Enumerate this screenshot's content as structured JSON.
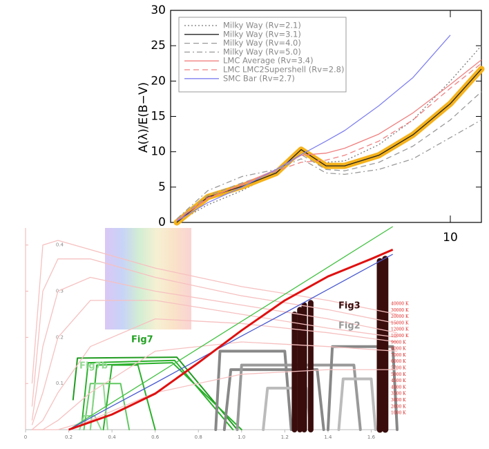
{
  "chart_data": [
    {
      "type": "line",
      "ylabel": "A(λ)/E(B−V)",
      "x": [
        1.2,
        2.2,
        3.3,
        4.4,
        5.2,
        6.0,
        6.6,
        7.7,
        8.8,
        10.0,
        11.0
      ],
      "xlim": [
        1,
        11
      ],
      "xticks": [
        10
      ],
      "ylim": [
        0,
        30
      ],
      "yticks": [
        0,
        5,
        10,
        15,
        20,
        25,
        30
      ],
      "legend": "upper left",
      "series": [
        {
          "name": "Milky Way (Rv=2.1)",
          "color": "#777777",
          "dash": "dotted",
          "values": [
            0,
            2.5,
            4.5,
            7,
            10,
            8.5,
            8.7,
            11,
            14.5,
            20,
            25
          ]
        },
        {
          "name": "Milky Way (Rv=3.1)",
          "color": "#222222",
          "dash": "solid",
          "band_color": "#f5b21b",
          "values": [
            0,
            3.6,
            5.1,
            7,
            10.3,
            8,
            8,
            9.5,
            12.4,
            16.8,
            21.7
          ]
        },
        {
          "name": "Milky Way (Rv=4.0)",
          "color": "#999999",
          "dash": "dashed",
          "values": [
            0.3,
            3.8,
            5.6,
            7.2,
            9.6,
            7.5,
            7.3,
            8.5,
            10.8,
            14.5,
            18.5
          ]
        },
        {
          "name": "Milky Way (Rv=5.0)",
          "color": "#999999",
          "dash": "dashdot",
          "values": [
            0.5,
            4.5,
            6.5,
            7.5,
            9,
            7,
            6.8,
            7.5,
            9,
            12,
            14.5
          ]
        },
        {
          "name": "LMC Average (Rv=3.4)",
          "color": "#f08080",
          "dash": "solid",
          "values": [
            0.3,
            3.4,
            5.4,
            7.5,
            9.5,
            9.8,
            10.5,
            12.5,
            15.5,
            19.5,
            23
          ]
        },
        {
          "name": "LMC LMC2Supershell (Rv=2.8)",
          "color": "#f08080",
          "dash": "dashed",
          "values": [
            0.3,
            3.5,
            5.3,
            7.3,
            8.5,
            8.8,
            9.5,
            11.5,
            14.5,
            19,
            22.5
          ]
        },
        {
          "name": "SMC Bar (Rv=2.7)",
          "color": "#8080f0",
          "dash": "solid",
          "values": [
            0.2,
            2.8,
            5.0,
            7.5,
            9.6,
            11.5,
            13,
            16.5,
            20.5,
            26.5,
            null
          ]
        }
      ]
    },
    {
      "type": "line",
      "xlim": [
        0,
        1.72
      ],
      "xticks": [
        0,
        0.2,
        0.4,
        0.6,
        0.8,
        {
          "value": 1.0,
          "label": "1.0"
        },
        1.2,
        1.4,
        1.6
      ],
      "ylim": [
        0,
        0.44
      ],
      "yticks": [
        0.1,
        0.2,
        0.3,
        0.4
      ],
      "series": [
        {
          "color": "#f6c0c0",
          "x": [
            0.03,
            0.08,
            0.15,
            0.3,
            0.6,
            1.0,
            1.4,
            1.72
          ],
          "values": [
            0.1,
            0.4,
            0.41,
            0.39,
            0.35,
            0.31,
            0.28,
            0.25
          ]
        },
        {
          "color": "#f6c0c0",
          "x": [
            0.03,
            0.08,
            0.15,
            0.3,
            0.6,
            1.0,
            1.4,
            1.72
          ],
          "values": [
            0.05,
            0.3,
            0.37,
            0.37,
            0.33,
            0.29,
            0.26,
            0.23
          ]
        },
        {
          "color": "#f6c0c0",
          "x": [
            0.03,
            0.08,
            0.15,
            0.3,
            0.6,
            1.0,
            1.4,
            1.72
          ],
          "values": [
            0.02,
            0.18,
            0.3,
            0.33,
            0.3,
            0.27,
            0.24,
            0.21
          ]
        },
        {
          "color": "#f6c0c0",
          "x": [
            0.03,
            0.08,
            0.15,
            0.3,
            0.6,
            1.0,
            1.4,
            1.72
          ],
          "values": [
            0.01,
            0.08,
            0.2,
            0.28,
            0.28,
            0.25,
            0.22,
            0.2
          ]
        },
        {
          "color": "#f6c0c0",
          "x": [
            0.03,
            0.08,
            0.15,
            0.3,
            0.6,
            1.0,
            1.4,
            1.72
          ],
          "values": [
            0,
            0.02,
            0.08,
            0.18,
            0.24,
            0.23,
            0.21,
            0.19
          ]
        },
        {
          "color": "#f6c0c0",
          "x": [
            0.03,
            0.08,
            0.15,
            0.3,
            0.6,
            1.0,
            1.4,
            1.72
          ],
          "values": [
            0,
            0,
            0.02,
            0.08,
            0.17,
            0.19,
            0.18,
            0.17
          ]
        },
        {
          "color": "#f6c0c0",
          "x": [
            0.03,
            0.08,
            0.15,
            0.3,
            0.6,
            1.0,
            1.4,
            1.72
          ],
          "values": [
            0,
            0,
            0,
            0.02,
            0.08,
            0.12,
            0.13,
            0.13
          ]
        },
        {
          "color": "#40c040",
          "x": [
            0.2,
            1.7
          ],
          "values": [
            0,
            0.44
          ]
        },
        {
          "color": "#4a5ad0",
          "x": [
            0.2,
            0.4,
            0.6,
            0.8,
            1.0,
            1.2,
            1.4,
            1.6,
            1.7
          ],
          "values": [
            0,
            0.051,
            0.101,
            0.152,
            0.203,
            0.253,
            0.304,
            0.355,
            0.38
          ]
        },
        {
          "color": "#e01010",
          "line_width": 3,
          "x": [
            0.2,
            0.4,
            0.6,
            0.8,
            1.0,
            1.2,
            1.4,
            1.6,
            1.7
          ],
          "values": [
            0,
            0.033,
            0.078,
            0.145,
            0.215,
            0.28,
            0.332,
            0.37,
            0.39
          ]
        }
      ],
      "filters": [
        {
          "color": "#1f9a1f",
          "line_width": 2,
          "x": [
            0.22,
            0.24,
            0.7,
            0.98
          ],
          "values": [
            0.065,
            0.155,
            0.157,
            0
          ]
        },
        {
          "color": "#2bb02b",
          "line_width": 2,
          "x": [
            0.26,
            0.29,
            0.69,
            0.96
          ],
          "values": [
            0.01,
            0.145,
            0.15,
            0
          ]
        },
        {
          "color": "#2bb02b",
          "line_width": 2,
          "x": [
            0.3,
            0.33,
            0.68,
            1.0
          ],
          "values": [
            0,
            0.14,
            0.145,
            0
          ]
        },
        {
          "color": "#2bb02b",
          "line_width": 2,
          "x": [
            0.36,
            0.4,
            0.52,
            0.6
          ],
          "values": [
            0,
            0.14,
            0.14,
            0
          ]
        },
        {
          "color": "#60c860",
          "line_width": 2,
          "x": [
            0.27,
            0.3,
            0.44,
            0.48
          ],
          "values": [
            0,
            0.1,
            0.1,
            0
          ]
        },
        {
          "color": "#90d890",
          "line_width": 2,
          "x": [
            0.3,
            0.32,
            0.36,
            0.38
          ],
          "values": [
            0,
            0.1,
            0.1,
            0
          ]
        },
        {
          "color": "#90d890",
          "line_width": 2,
          "x": [
            0.25,
            0.27,
            0.32,
            0.35
          ],
          "values": [
            0,
            0.03,
            0.03,
            0
          ]
        },
        {
          "color": "#888888",
          "line_width": 4,
          "x": [
            0.88,
            0.9,
            1.2,
            1.23
          ],
          "values": [
            0,
            0.17,
            0.17,
            0
          ]
        },
        {
          "color": "#888888",
          "line_width": 4,
          "x": [
            0.92,
            0.95,
            1.35,
            1.38
          ],
          "values": [
            0,
            0.13,
            0.13,
            0
          ]
        },
        {
          "color": "#999999",
          "line_width": 4,
          "x": [
            0.98,
            1.0,
            1.52,
            1.55
          ],
          "values": [
            0,
            0.14,
            0.14,
            0
          ]
        },
        {
          "color": "#888888",
          "line_width": 4,
          "x": [
            1.4,
            1.42,
            1.7,
            1.72
          ],
          "values": [
            0,
            0.18,
            0.18,
            0
          ]
        },
        {
          "color": "#bbbbbb",
          "line_width": 4,
          "x": [
            1.1,
            1.12,
            1.3,
            1.32
          ],
          "values": [
            0,
            0.09,
            0.09,
            0
          ]
        },
        {
          "color": "#bbbbbb",
          "line_width": 4,
          "x": [
            1.45,
            1.47,
            1.6,
            1.62
          ],
          "values": [
            0,
            0.11,
            0.11,
            0
          ]
        },
        {
          "color": "#3a0d0d",
          "line_width": 8,
          "x": [
            1.245,
            1.245
          ],
          "values": [
            0,
            0.25
          ]
        },
        {
          "color": "#3a0d0d",
          "line_width": 8,
          "x": [
            1.27,
            1.27
          ],
          "values": [
            0,
            0.26
          ]
        },
        {
          "color": "#3a0d0d",
          "line_width": 8,
          "x": [
            1.29,
            1.29
          ],
          "values": [
            0,
            0.27
          ]
        },
        {
          "color": "#3a0d0d",
          "line_width": 8,
          "x": [
            1.32,
            1.32
          ],
          "values": [
            0,
            0.275
          ]
        },
        {
          "color": "#3a0d0d",
          "line_width": 9,
          "x": [
            1.64,
            1.64
          ],
          "values": [
            0,
            0.365
          ]
        },
        {
          "color": "#3a0d0d",
          "line_width": 9,
          "x": [
            1.665,
            1.665
          ],
          "values": [
            0,
            0.37
          ]
        }
      ],
      "annotations": [
        {
          "text": "Fig7",
          "color": "#22a022"
        },
        {
          "text": "Fig7b",
          "color": "#90d890"
        },
        {
          "text": "Fig3",
          "color": "#3a0d0d"
        },
        {
          "text": "Fig2",
          "color": "#999999"
        }
      ],
      "temperature_color": "#e02020",
      "temperatures": [
        "40000 K",
        "30000 K",
        "20000 K",
        "15000 K",
        "12000 K",
        "10000 K",
        "9000 K",
        "8000 K",
        "7000 K",
        "6000 K",
        "5700 K",
        "5000 K",
        "4500 K",
        "4000 K",
        "3500 K",
        "3000 K",
        "2000 K",
        "1000 K"
      ]
    }
  ]
}
